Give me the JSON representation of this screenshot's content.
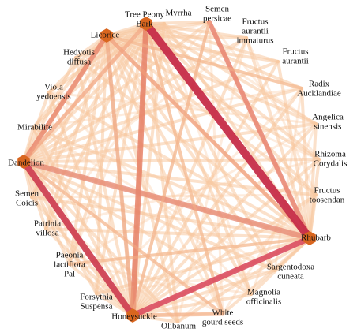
{
  "nodes": [
    {
      "label": [
        "Tree Peony",
        "Bark"
      ]
    },
    {
      "label": [
        "Myrrha"
      ]
    },
    {
      "label": [
        "Semen",
        "persicae"
      ]
    },
    {
      "label": [
        "Fructus",
        "aurantii",
        "immaturus"
      ]
    },
    {
      "label": [
        "Fructus",
        "aurantii"
      ]
    },
    {
      "label": [
        "Radix",
        "Aucklandiae"
      ]
    },
    {
      "label": [
        "Angelica",
        "sinensis"
      ]
    },
    {
      "label": [
        "Rhizoma",
        "Corydalis"
      ]
    },
    {
      "label": [
        "Fructus",
        "toosendan"
      ]
    },
    {
      "label": [
        "Rhubarb"
      ]
    },
    {
      "label": [
        "Sargentodoxa",
        "cuneata"
      ]
    },
    {
      "label": [
        "Magnolia",
        "officinalis"
      ]
    },
    {
      "label": [
        "White",
        "gourd seeds"
      ]
    },
    {
      "label": [
        "Olibanum"
      ]
    },
    {
      "label": [
        "Honeysuckle"
      ]
    },
    {
      "label": [
        "Forsythia",
        "Suspensa"
      ]
    },
    {
      "label": [
        "Paeonia",
        "lactiflora",
        "Pal"
      ]
    },
    {
      "label": [
        "Patrinia",
        "villosa"
      ]
    },
    {
      "label": [
        "Semen",
        "Coicis"
      ]
    },
    {
      "label": [
        "Dandelion"
      ]
    },
    {
      "label": [
        "Mirabilite"
      ]
    },
    {
      "label": [
        "Viola",
        "yedoensis"
      ]
    },
    {
      "label": [
        "Hedyotis",
        "diffusa"
      ]
    },
    {
      "label": [
        "Licorice"
      ]
    }
  ]
}
